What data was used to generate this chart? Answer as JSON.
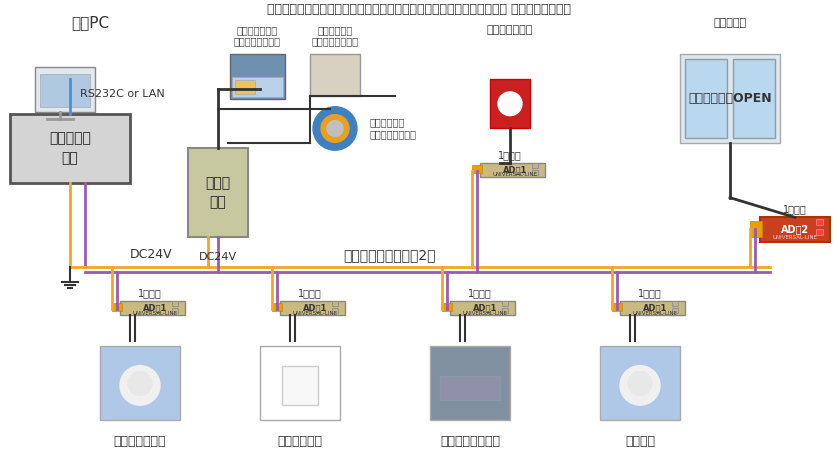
{
  "title": "２芯線で、コストを抑えて、構築していただいた『総合防範システム』 機器構成イメージ",
  "bg_color": "#ffffff",
  "line_color_orange": "#f5a623",
  "line_color_purple": "#9b59b6",
  "line_color_black": "#333333",
  "line_color_blue": "#4a90d9",
  "box_main_color": "#d0d0d0",
  "box_main_edge": "#888888",
  "ad1_color": "#c8b97a",
  "ad2_color": "#c8a050",
  "sensor_bg1": "#b0c8e8",
  "sensor_bg2": "#ffffff",
  "sensor_bg3": "#8090a0",
  "sensor_bg4": "#b0c8e8",
  "label_kanshi": "監視PC",
  "label_rs232": "RS232C or LAN",
  "label_denso": "伝送メイン\n装置",
  "label_pulse_input": "パルス\n入力",
  "label_denryoku": "電力量メーター\n（パルス出力付）",
  "label_gas": "ガスメーター\n（パルス出力仔）",
  "label_suido": "水道メーター\n（パルス出力付）",
  "label_dc24v": "DC24V",
  "label_universal": "ユニバーサルライン2芯",
  "label_hijou": "非常押しボタン",
  "label_auto_door": "オートドア",
  "label_kaiten": "開店時の一斉OPEN",
  "label_1ten_input": "1点入力",
  "label_1ten_output": "1点出力",
  "label_ad1": "AD・1\nUNIVERSAL-LINE",
  "label_ad2": "AD・2\nUNIVERSAL-LINE",
  "label_passive": "パッシブセンサ",
  "label_glass": "ガラスセンサ",
  "label_magnet": "マグネットセンサ",
  "label_fire": "炎センサ"
}
